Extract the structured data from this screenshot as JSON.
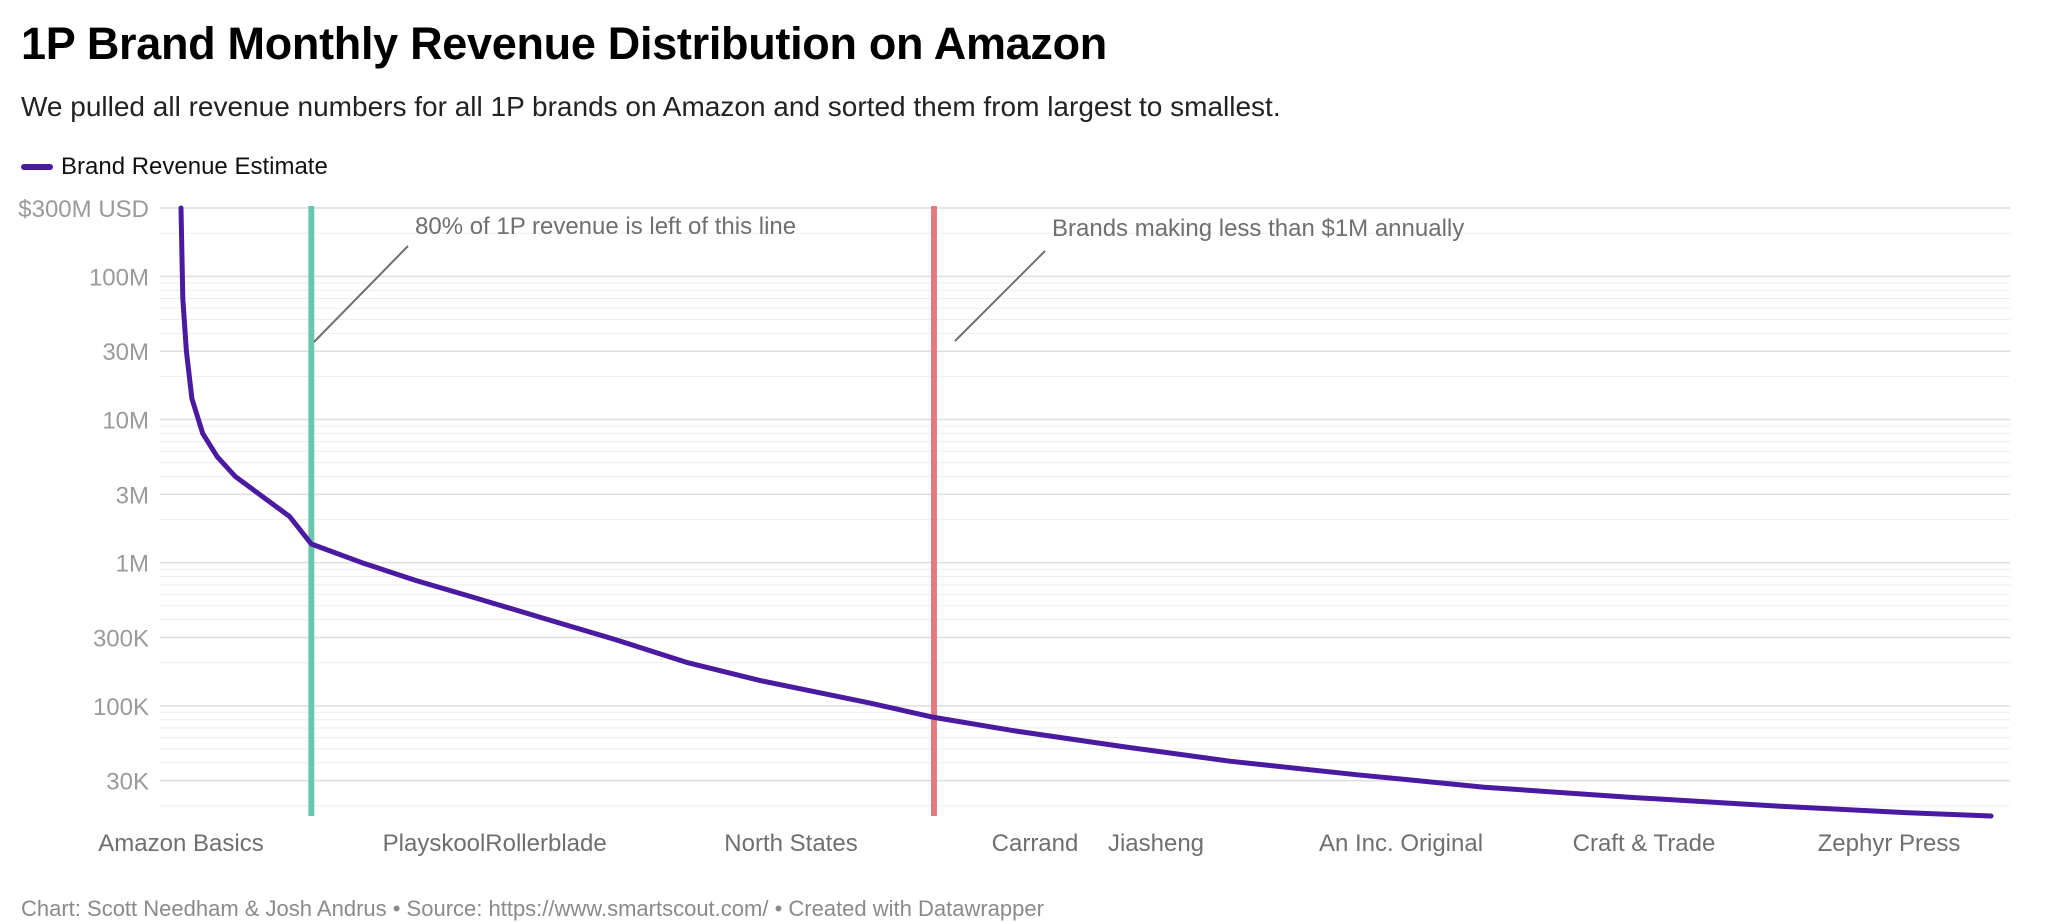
{
  "header": {
    "title": "1P Brand Monthly Revenue Distribution on Amazon",
    "subtitle": "We pulled all revenue numbers for all 1P brands on Amazon and sorted them from largest to smallest."
  },
  "footer": {
    "credit": "Chart: Scott Needham & Josh Andrus • Source: https://www.smartscout.com/ • Created with Datawrapper"
  },
  "chart_data": {
    "type": "line",
    "title": "1P Brand Monthly Revenue Distribution on Amazon",
    "y_scale": "log",
    "ylim": [
      17000,
      310000000
    ],
    "y_ticks": [
      {
        "value": 300000000,
        "label": "$300M USD"
      },
      {
        "value": 100000000,
        "label": "100M"
      },
      {
        "value": 30000000,
        "label": "30M"
      },
      {
        "value": 10000000,
        "label": "10M"
      },
      {
        "value": 3000000,
        "label": "3M"
      },
      {
        "value": 1000000,
        "label": "1M"
      },
      {
        "value": 300000,
        "label": "300K"
      },
      {
        "value": 100000,
        "label": "100K"
      },
      {
        "value": 30000,
        "label": "30K"
      }
    ],
    "x_tick_labels": [
      "Amazon Basics",
      "Playskool",
      "Rollerblade",
      "North States",
      "Carrand",
      "Jiasheng",
      "An Inc. Original",
      "Craft & Trade",
      "Zephyr Press"
    ],
    "grid": true,
    "legend": {
      "position": "top-left",
      "entries": [
        "Brand Revenue Estimate"
      ]
    },
    "series": [
      {
        "name": "Brand Revenue Estimate",
        "color": "#4a1aa0",
        "points": [
          {
            "rank": 0.0,
            "value": 300000000
          },
          {
            "rank": 0.001,
            "value": 70000000
          },
          {
            "rank": 0.003,
            "value": 30000000
          },
          {
            "rank": 0.006,
            "value": 14000000
          },
          {
            "rank": 0.012,
            "value": 8000000
          },
          {
            "rank": 0.02,
            "value": 5500000
          },
          {
            "rank": 0.03,
            "value": 4000000
          },
          {
            "rank": 0.045,
            "value": 2900000
          },
          {
            "rank": 0.06,
            "value": 2100000
          },
          {
            "rank": 0.072,
            "value": 1350000
          },
          {
            "rank": 0.1,
            "value": 1000000
          },
          {
            "rank": 0.13,
            "value": 750000
          },
          {
            "rank": 0.16,
            "value": 580000
          },
          {
            "rank": 0.2,
            "value": 410000
          },
          {
            "rank": 0.24,
            "value": 290000
          },
          {
            "rank": 0.28,
            "value": 200000
          },
          {
            "rank": 0.32,
            "value": 150000
          },
          {
            "rank": 0.38,
            "value": 105000
          },
          {
            "rank": 0.416,
            "value": 83000
          },
          {
            "rank": 0.46,
            "value": 67000
          },
          {
            "rank": 0.52,
            "value": 52000
          },
          {
            "rank": 0.58,
            "value": 41000
          },
          {
            "rank": 0.65,
            "value": 33000
          },
          {
            "rank": 0.72,
            "value": 27000
          },
          {
            "rank": 0.8,
            "value": 23000
          },
          {
            "rank": 0.88,
            "value": 20000
          },
          {
            "rank": 0.95,
            "value": 18000
          },
          {
            "rank": 1.0,
            "value": 17000
          }
        ]
      }
    ],
    "reference_lines": [
      {
        "rank": 0.072,
        "color": "#6cc6ad",
        "label": "80% of 1P revenue is left of this line"
      },
      {
        "rank": 0.416,
        "color": "#e07b80",
        "label": "Brands making less than $1M annually"
      }
    ]
  }
}
